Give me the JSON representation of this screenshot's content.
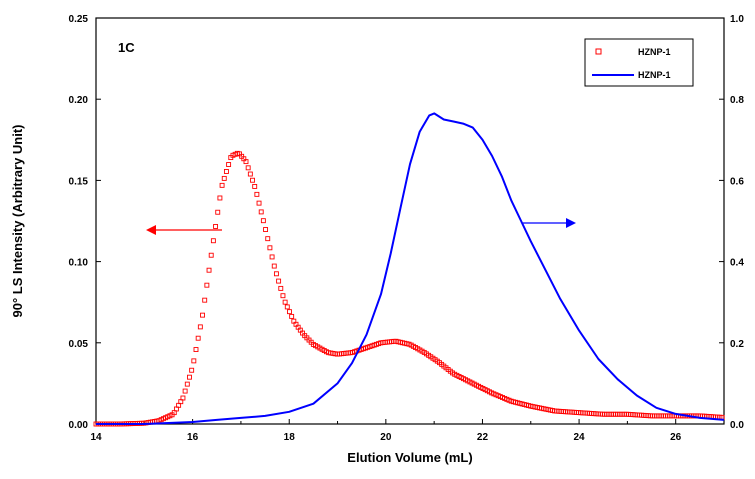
{
  "chart_data": {
    "type": "scatter",
    "panel_label": "1C",
    "xlabel": "Elution Volume (mL)",
    "ylabel": "90° LS Intensity (Arbitrary Unit)",
    "y2label": "",
    "xlim": [
      14,
      27
    ],
    "ylim": [
      0,
      0.25
    ],
    "y2lim": [
      0,
      1.0
    ],
    "x_ticks": [
      "14",
      "16",
      "18",
      "20",
      "22",
      "24",
      "26"
    ],
    "y_ticks": [
      "0.00",
      "0.05",
      "0.10",
      "0.15",
      "0.20",
      "0.25"
    ],
    "y2_ticks": [
      "0.0",
      "0.2",
      "0.4",
      "0.6",
      "0.8",
      "1.0"
    ],
    "legend_position": "top-right",
    "grid": false,
    "series": [
      {
        "name": "HZNP-1",
        "style": "open-square-markers",
        "axis": "left",
        "color": "#ff0000",
        "x": [
          14.0,
          14.5,
          15.0,
          15.3,
          15.6,
          15.8,
          16.0,
          16.2,
          16.4,
          16.6,
          16.8,
          16.95,
          17.1,
          17.3,
          17.5,
          17.7,
          17.9,
          18.1,
          18.3,
          18.5,
          18.8,
          19.0,
          19.3,
          19.6,
          19.9,
          20.2,
          20.5,
          20.8,
          21.1,
          21.4,
          21.8,
          22.2,
          22.6,
          23.0,
          23.5,
          24.0,
          24.5,
          25.0,
          25.5,
          26.0,
          26.5,
          27.0
        ],
        "y": [
          0.0,
          0.0,
          0.0005,
          0.002,
          0.006,
          0.016,
          0.035,
          0.066,
          0.107,
          0.146,
          0.165,
          0.167,
          0.162,
          0.145,
          0.121,
          0.096,
          0.076,
          0.063,
          0.055,
          0.049,
          0.044,
          0.043,
          0.044,
          0.047,
          0.05,
          0.051,
          0.049,
          0.044,
          0.038,
          0.031,
          0.025,
          0.019,
          0.014,
          0.011,
          0.008,
          0.007,
          0.006,
          0.006,
          0.005,
          0.005,
          0.005,
          0.004
        ]
      },
      {
        "name": "HZNP-1",
        "style": "line",
        "axis": "right",
        "color": "#0000ff",
        "x": [
          14.0,
          15.0,
          16.0,
          16.5,
          17.0,
          17.5,
          18.0,
          18.5,
          19.0,
          19.3,
          19.6,
          19.9,
          20.1,
          20.3,
          20.5,
          20.7,
          20.9,
          21.0,
          21.2,
          21.4,
          21.6,
          21.8,
          22.0,
          22.2,
          22.4,
          22.6,
          22.8,
          23.0,
          23.3,
          23.6,
          24.0,
          24.4,
          24.8,
          25.2,
          25.6,
          26.0,
          26.5,
          27.0
        ],
        "y": [
          0.0,
          0.0,
          0.005,
          0.01,
          0.015,
          0.02,
          0.03,
          0.05,
          0.1,
          0.15,
          0.22,
          0.32,
          0.42,
          0.53,
          0.64,
          0.72,
          0.76,
          0.765,
          0.75,
          0.745,
          0.74,
          0.73,
          0.7,
          0.66,
          0.61,
          0.55,
          0.5,
          0.45,
          0.38,
          0.31,
          0.23,
          0.16,
          0.11,
          0.07,
          0.04,
          0.025,
          0.015,
          0.01
        ]
      }
    ],
    "annotations": [
      {
        "type": "arrow",
        "direction": "left",
        "color": "#ff0000",
        "meaning": "red series uses left axis"
      },
      {
        "type": "arrow",
        "direction": "right",
        "color": "#0000ff",
        "meaning": "blue series uses right axis"
      }
    ]
  }
}
